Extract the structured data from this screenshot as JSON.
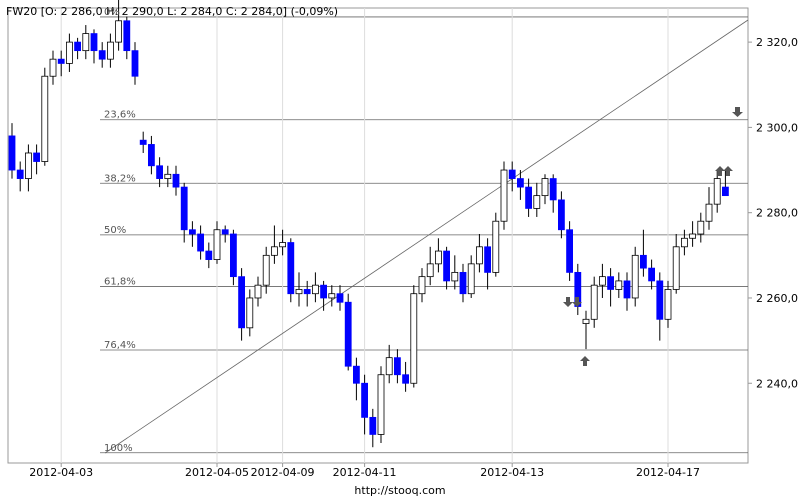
{
  "chart_data": {
    "type": "candlestick",
    "title": "FW20 [O: 2 286,0  H: 2 290,0  L: 2 284,0  C: 2 284,0] (-0,09%)",
    "source": "http://stooq.com",
    "categories": [
      null,
      null,
      null,
      null,
      null,
      null,
      "2012-04-03",
      null,
      null,
      null,
      null,
      null,
      null,
      null,
      null,
      null,
      null,
      null,
      null,
      null,
      null,
      null,
      null,
      null,
      null,
      "2012-04-05",
      null,
      null,
      null,
      null,
      null,
      null,
      null,
      "2012-04-09",
      null,
      null,
      null,
      null,
      null,
      null,
      null,
      null,
      null,
      "2012-04-11",
      null,
      null,
      null,
      null,
      null,
      null,
      null,
      null,
      null,
      null,
      null,
      null,
      null,
      null,
      null,
      null,
      null,
      "2012-04-13",
      null,
      null,
      null,
      null,
      null,
      null,
      null,
      null,
      null,
      null,
      null,
      null,
      null,
      null,
      null,
      null,
      null,
      null,
      "2012-04-17",
      null,
      null,
      null,
      null,
      null,
      null,
      null
    ],
    "open": [
      2298,
      2290,
      2288,
      2294,
      2292,
      2312,
      2316,
      2315,
      2320,
      2318,
      2322,
      2318,
      2316,
      2320,
      2325,
      2318,
      2297,
      2296,
      2291,
      2288,
      2289,
      2286,
      2276,
      2275,
      2271,
      2269,
      2276,
      2275,
      2265,
      2253,
      2260,
      2263,
      2270,
      2272,
      2273,
      2261,
      2262,
      2261,
      2263,
      2260,
      2261,
      2259,
      2244,
      2240,
      2232,
      2228,
      2242,
      2246,
      2242,
      2240,
      2261,
      2265,
      2268,
      2271,
      2264,
      2266,
      2261,
      2268,
      2272,
      2266,
      2278,
      2290,
      2288,
      2286,
      2281,
      2284,
      2288,
      2283,
      2276,
      2266,
      2254,
      2255,
      2263,
      2265,
      2262,
      2264,
      2260,
      2270,
      2267,
      2264,
      2255,
      2262,
      2272,
      2274,
      2275,
      2278,
      2282,
      2286
    ],
    "high": [
      2301,
      2292,
      2296,
      2296,
      2314,
      2318,
      2318,
      2322,
      2321,
      2324,
      2323,
      2320,
      2322,
      2330,
      2326,
      2320,
      2299,
      2298,
      2293,
      2291,
      2291,
      2287,
      2278,
      2277,
      2273,
      2278,
      2277,
      2276,
      2267,
      2262,
      2265,
      2272,
      2277,
      2276,
      2274,
      2266,
      2264,
      2266,
      2264,
      2263,
      2263,
      2261,
      2246,
      2242,
      2234,
      2244,
      2249,
      2248,
      2245,
      2263,
      2267,
      2272,
      2274,
      2272,
      2270,
      2268,
      2270,
      2275,
      2274,
      2280,
      2292,
      2292,
      2290,
      2288,
      2287,
      2289,
      2289,
      2285,
      2278,
      2268,
      2257,
      2265,
      2268,
      2267,
      2266,
      2266,
      2272,
      2276,
      2269,
      2266,
      2264,
      2275,
      2276,
      2278,
      2280,
      2286,
      2290,
      2290
    ],
    "low": [
      2288,
      2285,
      2285,
      2289,
      2291,
      2310,
      2312,
      2313,
      2316,
      2316,
      2315,
      2314,
      2314,
      2318,
      2316,
      2310,
      2294,
      2289,
      2286,
      2286,
      2284,
      2273,
      2272,
      2269,
      2267,
      2268,
      2273,
      2263,
      2250,
      2251,
      2258,
      2261,
      2268,
      2270,
      2259,
      2258,
      2258,
      2259,
      2257,
      2258,
      2257,
      2243,
      2236,
      2228,
      2225,
      2226,
      2240,
      2240,
      2238,
      2239,
      2259,
      2263,
      2266,
      2262,
      2262,
      2259,
      2260,
      2266,
      2262,
      2265,
      2276,
      2285,
      2283,
      2279,
      2279,
      2282,
      2280,
      2274,
      2264,
      2256,
      2248,
      2253,
      2260,
      2258,
      2260,
      2257,
      2258,
      2265,
      2262,
      2250,
      2253,
      2261,
      2270,
      2272,
      2273,
      2276,
      2280,
      2284
    ],
    "close": [
      2290,
      2288,
      2294,
      2292,
      2312,
      2316,
      2315,
      2320,
      2318,
      2322,
      2318,
      2316,
      2320,
      2325,
      2318,
      2312,
      2296,
      2291,
      2288,
      2289,
      2286,
      2276,
      2275,
      2271,
      2269,
      2276,
      2275,
      2265,
      2253,
      2260,
      2263,
      2270,
      2272,
      2273,
      2261,
      2262,
      2261,
      2263,
      2260,
      2261,
      2259,
      2244,
      2240,
      2232,
      2228,
      2242,
      2246,
      2242,
      2240,
      2261,
      2265,
      2268,
      2271,
      2264,
      2266,
      2261,
      2268,
      2272,
      2266,
      2278,
      2290,
      2288,
      2286,
      2281,
      2284,
      2288,
      2283,
      2276,
      2266,
      2258,
      2255,
      2263,
      2265,
      2262,
      2264,
      2260,
      2270,
      2267,
      2264,
      2255,
      2262,
      2272,
      2274,
      2275,
      2278,
      2282,
      2288,
      2284
    ],
    "up_color": "#ffffff",
    "down_color": "#0000ff",
    "fib_levels": [
      {
        "value": 2325.9,
        "label": "0%"
      },
      {
        "value": 2301.8,
        "label": "23,6%"
      },
      {
        "value": 2286.9,
        "label": "38,2%"
      },
      {
        "value": 2274.8,
        "label": "50%"
      },
      {
        "value": 2262.7,
        "label": "61,8%"
      },
      {
        "value": 2247.8,
        "label": "76,4%"
      },
      {
        "value": 2223.7,
        "label": "100%"
      }
    ],
    "ylim": [
      2221.3,
      2328.0
    ],
    "yticks": [
      {
        "value": 2240,
        "label": "2 240,0"
      },
      {
        "value": 2260,
        "label": "2 260,0"
      },
      {
        "value": 2280,
        "label": "2 280,0"
      },
      {
        "value": 2300,
        "label": "2 300,0"
      },
      {
        "value": 2320,
        "label": "2 320,0"
      }
    ],
    "grid": true
  }
}
